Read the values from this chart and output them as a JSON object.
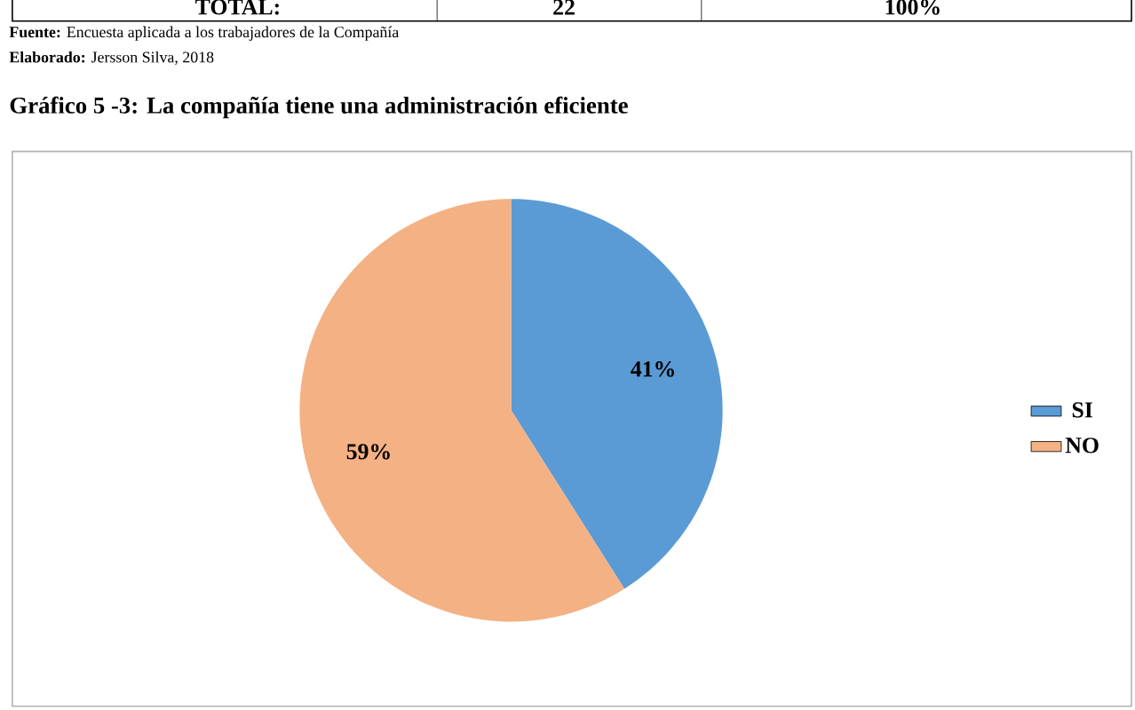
{
  "chart_data": {
    "type": "pie",
    "title": "Gráfico  5 -3: La compañía tiene una administración eficiente",
    "categories": [
      "SI",
      "NO"
    ],
    "values": [
      41,
      59
    ],
    "colors": [
      "#5b9bd5",
      "#f4b183"
    ],
    "value_labels": [
      "41%",
      "59%"
    ],
    "legend": "right",
    "annotations": [
      "TOTAL:",
      "22",
      "100%",
      "**Fuente:** Encuesta aplicada a los trabajadores de la Compañía",
      "**Elaborado:** Jersson Silva, 2018"
    ]
  }
}
